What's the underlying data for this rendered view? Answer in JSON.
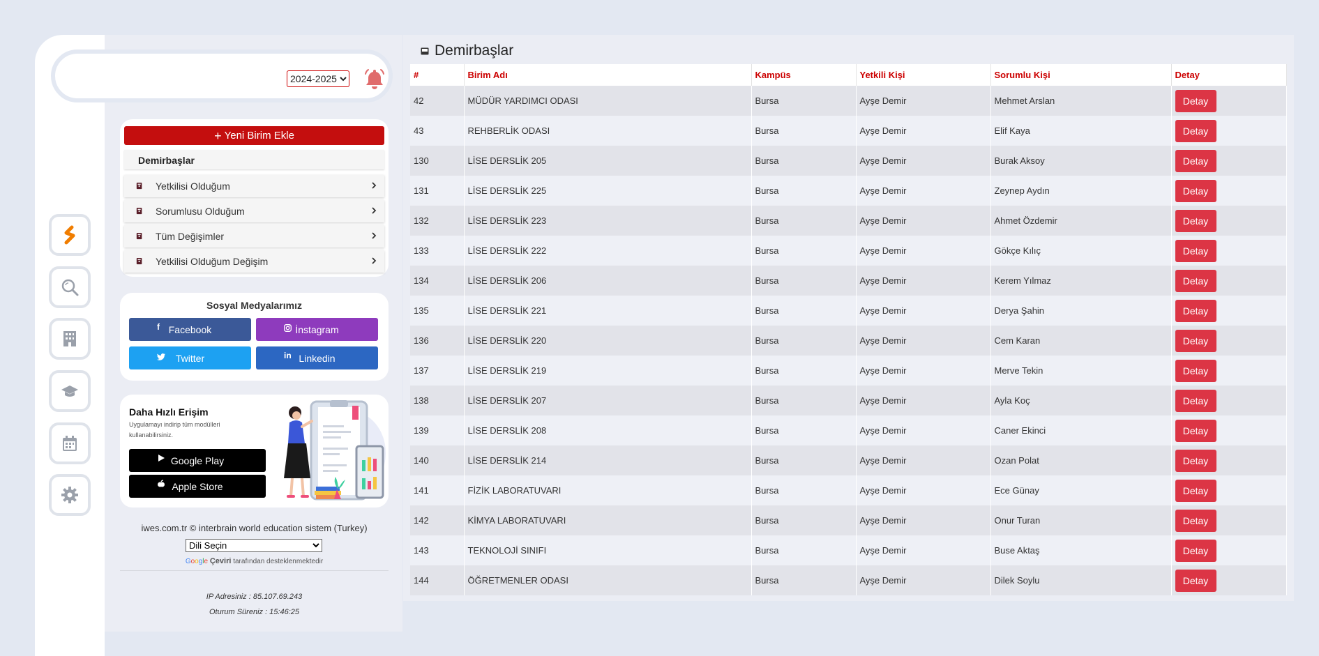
{
  "header": {
    "year_selected": "2024-2025",
    "year_options": [
      "2024-2025"
    ]
  },
  "menu": {
    "new_button": "Yeni Birim Ekle",
    "heading": "Demirbaşlar",
    "items": [
      {
        "label": "Yetkilisi Olduğum"
      },
      {
        "label": "Sorumlusu Olduğum"
      },
      {
        "label": "Tüm Değişimler"
      },
      {
        "label": "Yetkilisi Olduğum Değişim"
      }
    ]
  },
  "social": {
    "title": "Sosyal Medyalarımız",
    "facebook": "Facebook",
    "instagram": "İnstagram",
    "twitter": "Twitter",
    "linkedin": "Linkedin"
  },
  "app": {
    "title": "Daha Hızlı Erişim",
    "description": "Uygulamayı indirip tüm modülleri kullanabilirsiniz.",
    "google_play": "Google Play",
    "apple_store": "Apple Store"
  },
  "footer": {
    "copyright": "iwes.com.tr © interbrain world education sistem (Turkey)",
    "language_select": "Dili Seçin",
    "translate_brand": "Çeviri",
    "translate_suffix": "tarafından desteklenmektedir",
    "ip": "IP Adresiniz : 85.107.69.243",
    "session": "Oturum Süreniz : 15:46:25"
  },
  "main": {
    "title": "Demirbaşlar",
    "columns": [
      "#",
      "Birim Adı",
      "Kampüs",
      "Yetkili Kişi",
      "Sorumlu Kişi",
      "Detay"
    ],
    "detail_label": "Detay",
    "rows": [
      {
        "id": "42",
        "unit": "MÜDÜR YARDIMCI ODASI",
        "campus": "Bursa",
        "authorized": "Ayşe Demir",
        "responsible": "Mehmet Arslan"
      },
      {
        "id": "43",
        "unit": "REHBERLİK ODASI",
        "campus": "Bursa",
        "authorized": "Ayşe Demir",
        "responsible": "Elif Kaya"
      },
      {
        "id": "130",
        "unit": "LİSE DERSLİK 205",
        "campus": "Bursa",
        "authorized": "Ayşe Demir",
        "responsible": "Burak Aksoy"
      },
      {
        "id": "131",
        "unit": "LİSE DERSLİK 225",
        "campus": "Bursa",
        "authorized": "Ayşe Demir",
        "responsible": "Zeynep Aydın"
      },
      {
        "id": "132",
        "unit": "LİSE DERSLİK 223",
        "campus": "Bursa",
        "authorized": "Ayşe Demir",
        "responsible": "Ahmet Özdemir"
      },
      {
        "id": "133",
        "unit": "LİSE DERSLİK 222",
        "campus": "Bursa",
        "authorized": "Ayşe Demir",
        "responsible": "Gökçe Kılıç"
      },
      {
        "id": "134",
        "unit": "LİSE DERSLİK 206",
        "campus": "Bursa",
        "authorized": "Ayşe Demir",
        "responsible": "Kerem Yılmaz"
      },
      {
        "id": "135",
        "unit": "LİSE DERSLİK 221",
        "campus": "Bursa",
        "authorized": "Ayşe Demir",
        "responsible": "Derya Şahin"
      },
      {
        "id": "136",
        "unit": "LİSE DERSLİK 220",
        "campus": "Bursa",
        "authorized": "Ayşe Demir",
        "responsible": "Cem Karan"
      },
      {
        "id": "137",
        "unit": "LİSE DERSLİK 219",
        "campus": "Bursa",
        "authorized": "Ayşe Demir",
        "responsible": "Merve Tekin"
      },
      {
        "id": "138",
        "unit": "LİSE DERSLİK 207",
        "campus": "Bursa",
        "authorized": "Ayşe Demir",
        "responsible": "Ayla Koç"
      },
      {
        "id": "139",
        "unit": "LİSE DERSLİK 208",
        "campus": "Bursa",
        "authorized": "Ayşe Demir",
        "responsible": "Caner Ekinci"
      },
      {
        "id": "140",
        "unit": "LİSE DERSLİK 214",
        "campus": "Bursa",
        "authorized": "Ayşe Demir",
        "responsible": "Ozan Polat"
      },
      {
        "id": "141",
        "unit": "FİZİK LABORATUVARI",
        "campus": "Bursa",
        "authorized": "Ayşe Demir",
        "responsible": "Ece Günay"
      },
      {
        "id": "142",
        "unit": "KİMYA LABORATUVARI",
        "campus": "Bursa",
        "authorized": "Ayşe Demir",
        "responsible": "Onur Turan"
      },
      {
        "id": "143",
        "unit": "TEKNOLOJİ SINIFI",
        "campus": "Bursa",
        "authorized": "Ayşe Demir",
        "responsible": "Buse Aktaş"
      },
      {
        "id": "144",
        "unit": "ÖĞRETMENLER ODASI",
        "campus": "Bursa",
        "authorized": "Ayşe Demir",
        "responsible": "Dilek Soylu"
      }
    ]
  },
  "icons": {
    "brand": "brand-logo-icon",
    "rail": [
      "search-icon",
      "building-icon",
      "graduation-cap-icon",
      "calendar-icon",
      "gear-icon"
    ],
    "bell": "bell-icon"
  },
  "colors": {
    "accent_red": "#c40e0e",
    "detail_button": "#dc3545",
    "brand_orange": "#f07d00",
    "facebook": "#3b5998",
    "instagram": "#8e3bbd",
    "twitter": "#1da1f2",
    "linkedin": "#2c67c2"
  }
}
